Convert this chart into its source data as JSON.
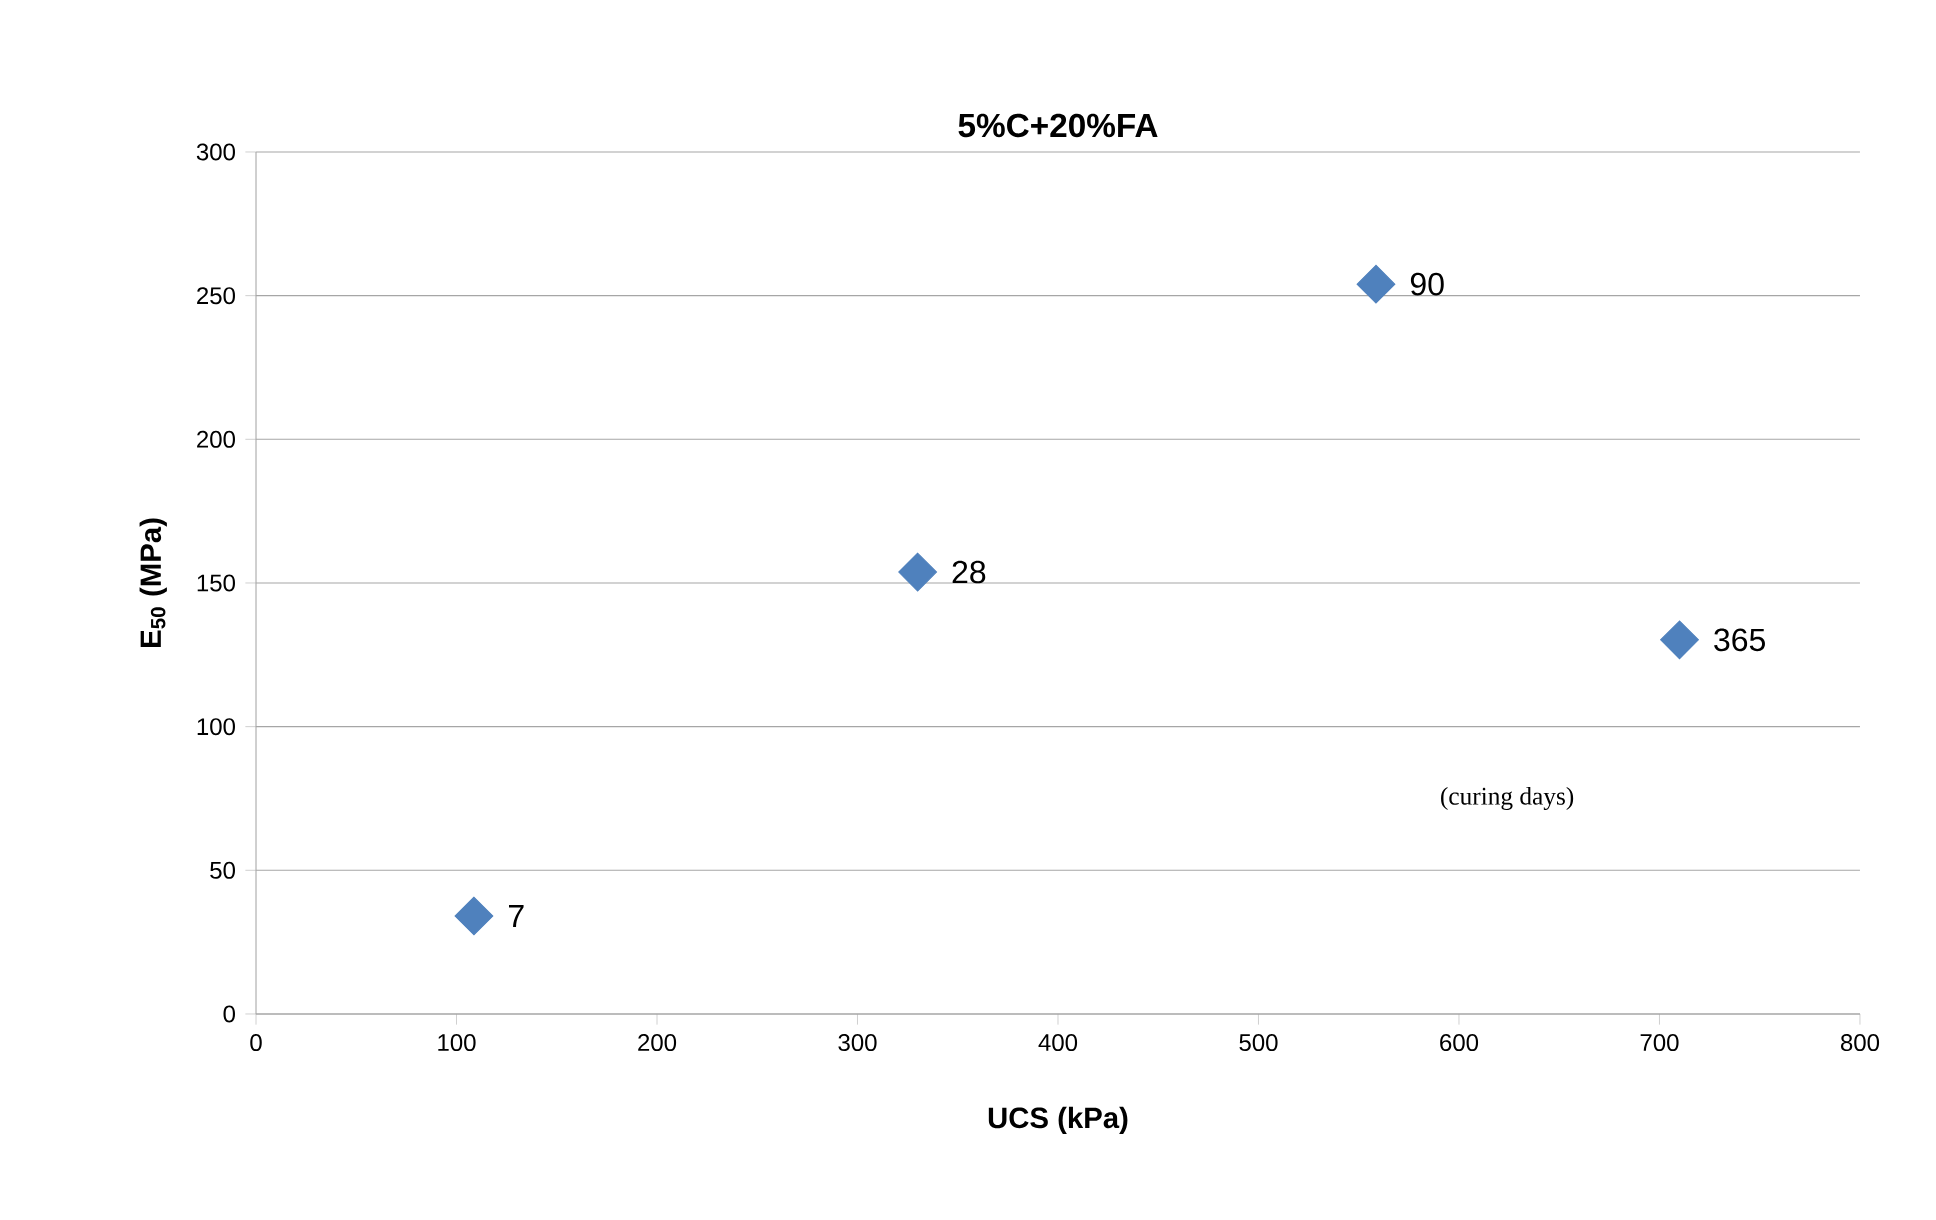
{
  "chart_data": {
    "type": "scatter",
    "title": "5%C+20%FA",
    "xlabel": "UCS (kPa)",
    "ylabel": "E$_{50}$ (MPa)",
    "x": [
      108.7,
      330,
      558.6,
      710
    ],
    "series": [
      {
        "color": "#4f81bd",
        "values": [
          34.1,
          153.8,
          254,
          130.2
        ]
      }
    ],
    "xlim": [
      0,
      800
    ],
    "xticks": [
      0,
      100,
      200,
      300,
      400,
      500,
      600,
      700,
      800
    ],
    "ylim": [
      0,
      300
    ],
    "yticks": [
      0,
      50,
      100,
      150,
      200,
      250,
      300
    ],
    "grid": "y",
    "marker": "diamond",
    "annotations": [
      {
        "text": "7",
        "x": 108.7,
        "y": 34.1
      },
      {
        "text": "28",
        "x": 330,
        "y": 153.8
      },
      {
        "text": "90",
        "x": 558.6,
        "y": 254
      },
      {
        "text": "365",
        "x": 710,
        "y": 130.2
      },
      "(curing days)"
    ]
  }
}
